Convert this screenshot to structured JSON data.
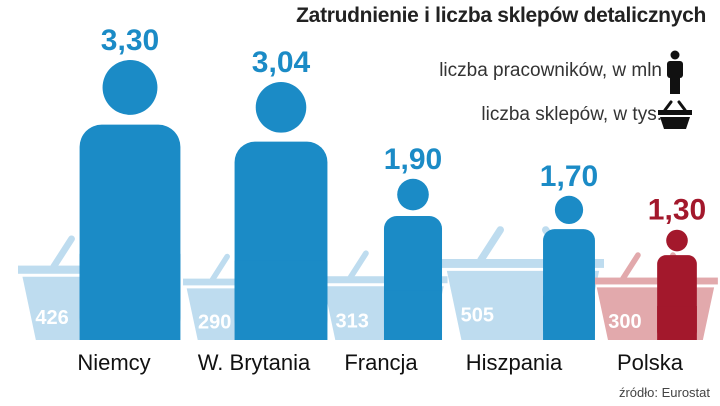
{
  "title": "Zatrudnienie  i liczba sklepów detalicznych",
  "legend": {
    "employees": "liczba pracowników, w mln",
    "shops": "liczba sklepów, w tys."
  },
  "source": "źródło: Eurostat",
  "colors": {
    "person": "#1b8bc6",
    "person_highlight": "#a3182c",
    "basket": "#bedcef",
    "basket_highlight": "#e2a9ac",
    "value_label": "#1b8bc6",
    "value_label_highlight": "#a3182c",
    "legend_icon": "#111111"
  },
  "icons": {
    "employees": "person-icon",
    "shops": "basket-icon"
  },
  "chart_data": {
    "type": "bar",
    "title": "Zatrudnienie  i liczba sklepów detalicznych",
    "categories": [
      "Niemcy",
      "W. Brytania",
      "Francja",
      "Hiszpania",
      "Polska"
    ],
    "series": [
      {
        "name": "liczba pracowników, w mln",
        "values": [
          3.3,
          3.04,
          1.9,
          1.7,
          1.3
        ],
        "labels": [
          "3,30",
          "3,04",
          "1,90",
          "1,70",
          "1,30"
        ]
      },
      {
        "name": "liczba sklepów, w tys.",
        "values": [
          426,
          290,
          313,
          505,
          300
        ],
        "labels": [
          "426",
          "290",
          "313",
          "505",
          "300"
        ]
      }
    ],
    "highlight": "Polska"
  }
}
